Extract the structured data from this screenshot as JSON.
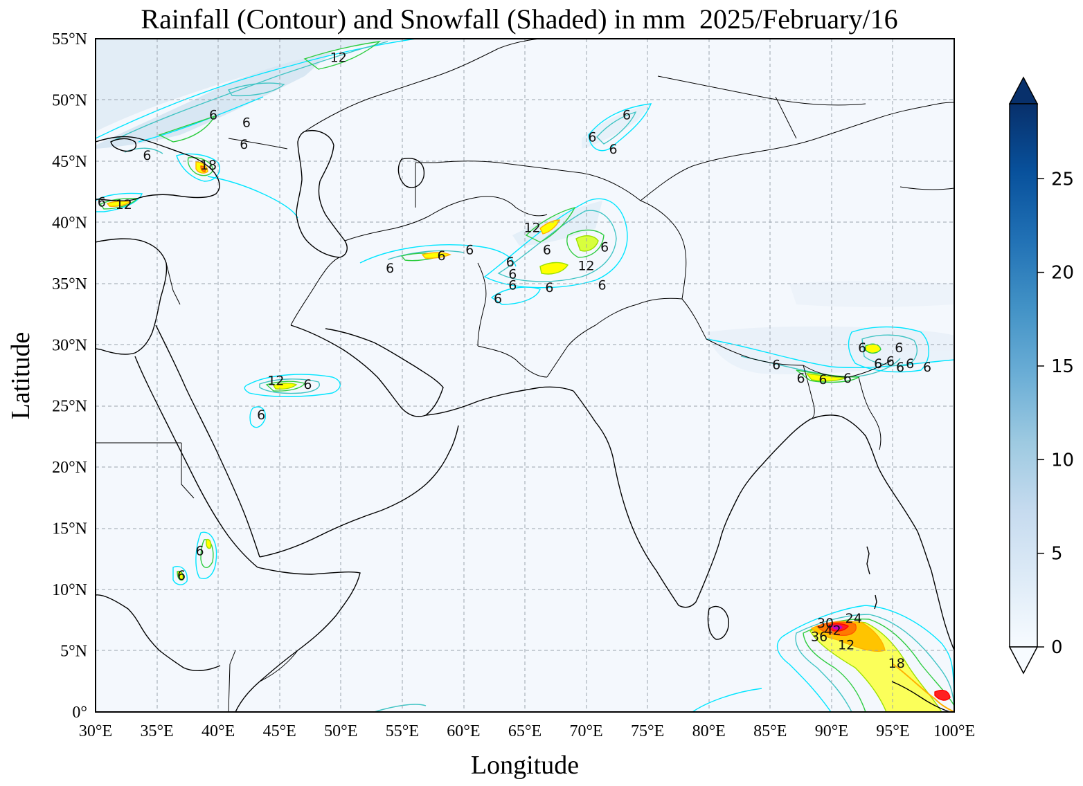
{
  "title": "Rainfall (Contour) and Snowfall (Shaded) in mm  2025/February/16",
  "axes": {
    "xlabel": "Longitude",
    "ylabel": "Latitude",
    "lon_range": [
      30,
      100
    ],
    "lat_range": [
      0,
      55
    ],
    "x_ticks": [
      "30°E",
      "35°E",
      "40°E",
      "45°E",
      "50°E",
      "55°E",
      "60°E",
      "65°E",
      "70°E",
      "75°E",
      "80°E",
      "85°E",
      "90°E",
      "95°E",
      "100°E"
    ],
    "y_ticks": [
      "0°",
      "5°N",
      "10°N",
      "15°N",
      "20°N",
      "25°N",
      "30°N",
      "35°N",
      "40°N",
      "45°N",
      "50°N",
      "55°N"
    ]
  },
  "colorbar": {
    "min": 0,
    "max": 29,
    "ticks": [
      "0",
      "5",
      "10",
      "15",
      "20",
      "25"
    ],
    "colormap": "Blues",
    "extend": "both",
    "colors": [
      "#f7fbff",
      "#deebf7",
      "#c6dbef",
      "#9ecae1",
      "#6baed6",
      "#4292c6",
      "#2171b5",
      "#08519c",
      "#08306b"
    ]
  },
  "contour_colors": [
    "#00e5ff",
    "#40c4c4",
    "#2ecc40",
    "#9be000",
    "#ffff00",
    "#ffb000",
    "#ff5a00",
    "#ff0000",
    "#c800c8"
  ],
  "contour_labels": [
    {
      "text": "12",
      "lon": 49.8,
      "lat": 53.5
    },
    {
      "text": "6",
      "lon": 39.6,
      "lat": 48.8
    },
    {
      "text": "6",
      "lon": 42.3,
      "lat": 48.2
    },
    {
      "text": "6",
      "lon": 42.1,
      "lat": 46.4
    },
    {
      "text": "6",
      "lon": 34.2,
      "lat": 45.5
    },
    {
      "text": "18",
      "lon": 39.2,
      "lat": 44.7
    },
    {
      "text": "6",
      "lon": 30.5,
      "lat": 41.7
    },
    {
      "text": "12",
      "lon": 32.3,
      "lat": 41.5
    },
    {
      "text": "6",
      "lon": 73.3,
      "lat": 48.8
    },
    {
      "text": "6",
      "lon": 70.5,
      "lat": 47.0
    },
    {
      "text": "6",
      "lon": 72.2,
      "lat": 46.0
    },
    {
      "text": "12",
      "lon": 65.6,
      "lat": 39.6
    },
    {
      "text": "6",
      "lon": 66.8,
      "lat": 37.8
    },
    {
      "text": "6",
      "lon": 71.5,
      "lat": 38.0
    },
    {
      "text": "6",
      "lon": 60.5,
      "lat": 37.8
    },
    {
      "text": "6",
      "lon": 58.2,
      "lat": 37.3
    },
    {
      "text": "6",
      "lon": 63.8,
      "lat": 36.8
    },
    {
      "text": "6",
      "lon": 64.0,
      "lat": 35.8
    },
    {
      "text": "6",
      "lon": 64.0,
      "lat": 34.9
    },
    {
      "text": "12",
      "lon": 70.0,
      "lat": 36.5
    },
    {
      "text": "6",
      "lon": 67.0,
      "lat": 34.7
    },
    {
      "text": "6",
      "lon": 71.3,
      "lat": 34.9
    },
    {
      "text": "6",
      "lon": 62.8,
      "lat": 33.8
    },
    {
      "text": "6",
      "lon": 54.0,
      "lat": 36.3
    },
    {
      "text": "12",
      "lon": 44.7,
      "lat": 27.1
    },
    {
      "text": "6",
      "lon": 47.3,
      "lat": 26.8
    },
    {
      "text": "6",
      "lon": 43.5,
      "lat": 24.3
    },
    {
      "text": "6",
      "lon": 38.5,
      "lat": 13.2
    },
    {
      "text": "6",
      "lon": 37.0,
      "lat": 11.2
    },
    {
      "text": "6",
      "lon": 85.5,
      "lat": 28.4
    },
    {
      "text": "6",
      "lon": 92.5,
      "lat": 29.8
    },
    {
      "text": "6",
      "lon": 95.5,
      "lat": 29.8
    },
    {
      "text": "6",
      "lon": 87.5,
      "lat": 27.3
    },
    {
      "text": "6",
      "lon": 89.3,
      "lat": 27.2
    },
    {
      "text": "6",
      "lon": 91.3,
      "lat": 27.3
    },
    {
      "text": "6",
      "lon": 93.8,
      "lat": 28.5
    },
    {
      "text": "6",
      "lon": 94.8,
      "lat": 28.7
    },
    {
      "text": "6",
      "lon": 95.6,
      "lat": 28.2
    },
    {
      "text": "6",
      "lon": 96.4,
      "lat": 28.5
    },
    {
      "text": "6",
      "lon": 97.8,
      "lat": 28.2
    },
    {
      "text": "24",
      "lon": 91.8,
      "lat": 7.7
    },
    {
      "text": "30",
      "lon": 89.5,
      "lat": 7.3
    },
    {
      "text": "42",
      "lon": 90.1,
      "lat": 6.7
    },
    {
      "text": "36",
      "lon": 89.0,
      "lat": 6.2
    },
    {
      "text": "12",
      "lon": 91.2,
      "lat": 5.5
    },
    {
      "text": "18",
      "lon": 95.3,
      "lat": 4.0
    }
  ]
}
